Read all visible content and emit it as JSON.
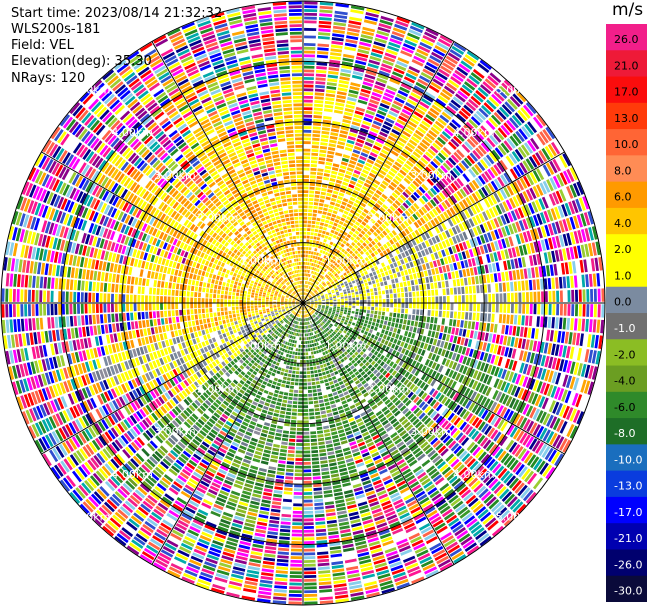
{
  "header": {
    "start_time": "Start time: 2023/08/14 21:32:32",
    "site": "WLS200s-181",
    "field": "Field: VEL",
    "elevation": "Elevation(deg): 35.30",
    "nrays": "NRays: 120"
  },
  "chart_data": {
    "type": "heatmap",
    "projection": "polar-ppi",
    "field": "VEL",
    "nrays": 120,
    "range_rings": [
      "1.00km",
      "2.00km",
      "3.00km",
      "4.00km",
      "5.00km"
    ],
    "colorbar": {
      "title": "m/s",
      "ticks": [
        "26.0",
        "21.0",
        "17.0",
        "13.0",
        "10.0",
        "8.0",
        "6.0",
        "4.0",
        "2.0",
        "1.0",
        "0.0",
        "-1.0",
        "-2.0",
        "-4.0",
        "-6.0",
        "-8.0",
        "-10.0",
        "-13.0",
        "-17.0",
        "-21.0",
        "-26.0",
        "-30.0"
      ],
      "colors": [
        "#f21f8a",
        "#ee1a38",
        "#fb0d0d",
        "#ff3b0a",
        "#ff6535",
        "#ff8c55",
        "#ff9a00",
        "#ffc500",
        "#ffff00",
        "#ffff00",
        "#7b8ba0",
        "#707070",
        "#8bbd24",
        "#6b9e22",
        "#2f8a2a",
        "#1e6e27",
        "#1a6ebe",
        "#0a3cde",
        "#0000ff",
        "#0000b0",
        "#00006e",
        "#0a0a3a"
      ]
    },
    "far_field_palette": [
      "#0000ff",
      "#00008b",
      "#f21f8a",
      "#ffff00",
      "#ff00ff",
      "#ff1493",
      "#ffa500",
      "#228b22",
      "#87ceeb",
      "#ff6347",
      "#2f4fcf",
      "#00aaaa",
      "#9acd32",
      "#ff0000",
      "#8b008b"
    ]
  }
}
